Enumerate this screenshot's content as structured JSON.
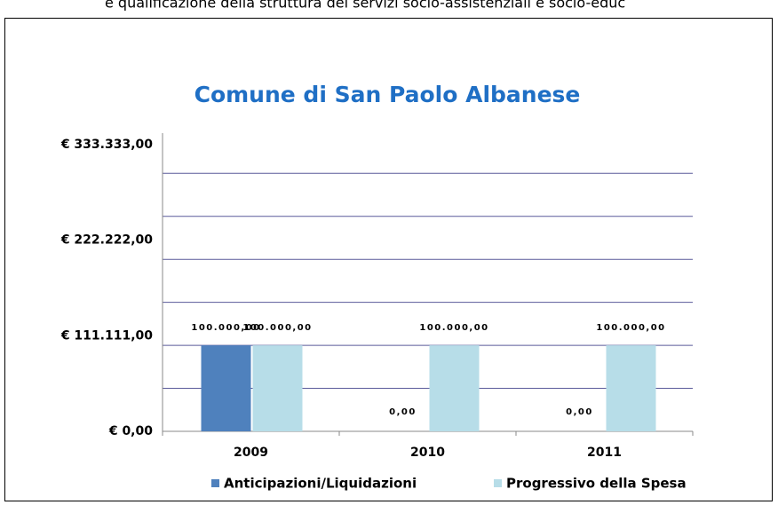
{
  "header_text": "e qualificazione della struttura dei servizi socio-assistenziali e socio-educ",
  "chart_data": {
    "type": "bar",
    "title": "Comune di San Paolo Albanese",
    "categories": [
      "2009",
      "2010",
      "2011"
    ],
    "series": [
      {
        "name": "Anticipazioni/Liquidazioni",
        "color": "#4f81bd",
        "values": [
          100000,
          0,
          0
        ],
        "value_labels": [
          "100.000,00",
          "0,00",
          "0,00"
        ]
      },
      {
        "name": "Progressivo della Spesa",
        "color": "#b7dde8",
        "values": [
          100000,
          100000,
          100000
        ],
        "value_labels": [
          "100.000,00",
          "100.000,00",
          "100.000,00"
        ]
      }
    ],
    "ylim": [
      0,
      333333
    ],
    "yticks": [
      {
        "value": 0,
        "label": "€ 0,00"
      },
      {
        "value": 111111,
        "label": "€ 111.111,00"
      },
      {
        "value": 222222,
        "label": "€ 222.222,00"
      },
      {
        "value": 333333,
        "label": "€ 333.333,00"
      }
    ],
    "grid_values": [
      50000,
      100000,
      150000,
      200000,
      250000,
      300000
    ],
    "grid": true,
    "legend": "bottom"
  }
}
